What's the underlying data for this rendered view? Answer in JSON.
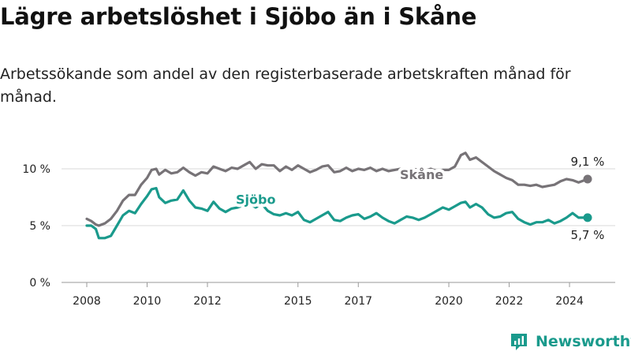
{
  "title": "Lägre arbetslöshet i Sjöbo än i Skåne",
  "subtitle": "Arbetssökande som andel av den registerbaserade arbetskraften månad för månad.",
  "brand": {
    "name": "Newsworthy",
    "color": "#1a9a8c"
  },
  "chart_data": {
    "type": "line",
    "x_range": [
      2008.0,
      2024.6
    ],
    "ylim": [
      0,
      12
    ],
    "y_ticks": [
      0,
      5,
      10
    ],
    "y_tick_labels": [
      "0 %",
      "5 %",
      "10 %"
    ],
    "x_ticks": [
      2008,
      2010,
      2012,
      2015,
      2017,
      2020,
      2022,
      2024
    ],
    "x_tick_labels": [
      "2008",
      "2010",
      "2012",
      "2015",
      "2017",
      "2020",
      "2022",
      "2024"
    ],
    "grid": true,
    "series": [
      {
        "name": "Skåne",
        "color": "#777377",
        "end_label": "9,1 %",
        "points": [
          [
            2008.0,
            5.6
          ],
          [
            2008.15,
            5.4
          ],
          [
            2008.3,
            5.1
          ],
          [
            2008.4,
            5.0
          ],
          [
            2008.6,
            5.2
          ],
          [
            2008.8,
            5.6
          ],
          [
            2009.0,
            6.3
          ],
          [
            2009.2,
            7.2
          ],
          [
            2009.4,
            7.7
          ],
          [
            2009.6,
            7.7
          ],
          [
            2009.8,
            8.6
          ],
          [
            2010.0,
            9.2
          ],
          [
            2010.15,
            9.9
          ],
          [
            2010.3,
            10.0
          ],
          [
            2010.4,
            9.5
          ],
          [
            2010.6,
            9.9
          ],
          [
            2010.8,
            9.6
          ],
          [
            2011.0,
            9.7
          ],
          [
            2011.2,
            10.1
          ],
          [
            2011.4,
            9.7
          ],
          [
            2011.6,
            9.4
          ],
          [
            2011.8,
            9.7
          ],
          [
            2012.0,
            9.6
          ],
          [
            2012.2,
            10.2
          ],
          [
            2012.4,
            10.0
          ],
          [
            2012.6,
            9.8
          ],
          [
            2012.8,
            10.1
          ],
          [
            2013.0,
            10.0
          ],
          [
            2013.2,
            10.3
          ],
          [
            2013.4,
            10.6
          ],
          [
            2013.6,
            10.0
          ],
          [
            2013.8,
            10.4
          ],
          [
            2014.0,
            10.3
          ],
          [
            2014.2,
            10.3
          ],
          [
            2014.4,
            9.8
          ],
          [
            2014.6,
            10.2
          ],
          [
            2014.8,
            9.9
          ],
          [
            2015.0,
            10.3
          ],
          [
            2015.2,
            10.0
          ],
          [
            2015.4,
            9.7
          ],
          [
            2015.6,
            9.9
          ],
          [
            2015.8,
            10.2
          ],
          [
            2016.0,
            10.3
          ],
          [
            2016.2,
            9.7
          ],
          [
            2016.4,
            9.8
          ],
          [
            2016.6,
            10.1
          ],
          [
            2016.8,
            9.8
          ],
          [
            2017.0,
            10.0
          ],
          [
            2017.2,
            9.9
          ],
          [
            2017.4,
            10.1
          ],
          [
            2017.6,
            9.8
          ],
          [
            2017.8,
            10.0
          ],
          [
            2018.0,
            9.8
          ],
          [
            2018.2,
            9.9
          ],
          [
            2018.4,
            10.0
          ],
          [
            2018.6,
            9.8
          ],
          [
            2018.8,
            10.0
          ],
          [
            2019.0,
            9.9
          ],
          [
            2019.2,
            9.8
          ],
          [
            2019.4,
            10.0
          ],
          [
            2019.6,
            9.8
          ],
          [
            2019.8,
            9.9
          ],
          [
            2020.0,
            9.9
          ],
          [
            2020.2,
            10.2
          ],
          [
            2020.4,
            11.2
          ],
          [
            2020.55,
            11.4
          ],
          [
            2020.7,
            10.8
          ],
          [
            2020.9,
            11.0
          ],
          [
            2021.1,
            10.6
          ],
          [
            2021.3,
            10.2
          ],
          [
            2021.5,
            9.8
          ],
          [
            2021.7,
            9.5
          ],
          [
            2021.9,
            9.2
          ],
          [
            2022.1,
            9.0
          ],
          [
            2022.3,
            8.6
          ],
          [
            2022.5,
            8.6
          ],
          [
            2022.7,
            8.5
          ],
          [
            2022.9,
            8.6
          ],
          [
            2023.1,
            8.4
          ],
          [
            2023.3,
            8.5
          ],
          [
            2023.5,
            8.6
          ],
          [
            2023.7,
            8.9
          ],
          [
            2023.9,
            9.1
          ],
          [
            2024.1,
            9.0
          ],
          [
            2024.3,
            8.8
          ],
          [
            2024.6,
            9.1
          ]
        ]
      },
      {
        "name": "Sjöbo",
        "color": "#1a9a8c",
        "end_label": "5,7 %",
        "points": [
          [
            2008.0,
            5.0
          ],
          [
            2008.15,
            5.0
          ],
          [
            2008.3,
            4.7
          ],
          [
            2008.4,
            3.9
          ],
          [
            2008.6,
            3.9
          ],
          [
            2008.8,
            4.1
          ],
          [
            2009.0,
            5.0
          ],
          [
            2009.2,
            5.9
          ],
          [
            2009.4,
            6.3
          ],
          [
            2009.6,
            6.1
          ],
          [
            2009.8,
            6.9
          ],
          [
            2010.0,
            7.6
          ],
          [
            2010.15,
            8.2
          ],
          [
            2010.3,
            8.3
          ],
          [
            2010.4,
            7.5
          ],
          [
            2010.6,
            7.0
          ],
          [
            2010.8,
            7.2
          ],
          [
            2011.0,
            7.3
          ],
          [
            2011.2,
            8.1
          ],
          [
            2011.4,
            7.2
          ],
          [
            2011.6,
            6.6
          ],
          [
            2011.8,
            6.5
          ],
          [
            2012.0,
            6.3
          ],
          [
            2012.2,
            7.1
          ],
          [
            2012.4,
            6.5
          ],
          [
            2012.6,
            6.2
          ],
          [
            2012.8,
            6.5
          ],
          [
            2013.0,
            6.6
          ],
          [
            2013.2,
            6.8
          ],
          [
            2013.4,
            6.9
          ],
          [
            2013.6,
            6.6
          ],
          [
            2013.8,
            6.9
          ],
          [
            2014.0,
            6.3
          ],
          [
            2014.2,
            6.0
          ],
          [
            2014.4,
            5.9
          ],
          [
            2014.6,
            6.1
          ],
          [
            2014.8,
            5.9
          ],
          [
            2015.0,
            6.2
          ],
          [
            2015.2,
            5.5
          ],
          [
            2015.4,
            5.3
          ],
          [
            2015.6,
            5.6
          ],
          [
            2015.8,
            5.9
          ],
          [
            2016.0,
            6.2
          ],
          [
            2016.2,
            5.5
          ],
          [
            2016.4,
            5.4
          ],
          [
            2016.6,
            5.7
          ],
          [
            2016.8,
            5.9
          ],
          [
            2017.0,
            6.0
          ],
          [
            2017.2,
            5.6
          ],
          [
            2017.4,
            5.8
          ],
          [
            2017.6,
            6.1
          ],
          [
            2017.8,
            5.7
          ],
          [
            2018.0,
            5.4
          ],
          [
            2018.2,
            5.2
          ],
          [
            2018.4,
            5.5
          ],
          [
            2018.6,
            5.8
          ],
          [
            2018.8,
            5.7
          ],
          [
            2019.0,
            5.5
          ],
          [
            2019.2,
            5.7
          ],
          [
            2019.4,
            6.0
          ],
          [
            2019.6,
            6.3
          ],
          [
            2019.8,
            6.6
          ],
          [
            2020.0,
            6.4
          ],
          [
            2020.2,
            6.7
          ],
          [
            2020.4,
            7.0
          ],
          [
            2020.55,
            7.1
          ],
          [
            2020.7,
            6.6
          ],
          [
            2020.9,
            6.9
          ],
          [
            2021.1,
            6.6
          ],
          [
            2021.3,
            6.0
          ],
          [
            2021.5,
            5.7
          ],
          [
            2021.7,
            5.8
          ],
          [
            2021.9,
            6.1
          ],
          [
            2022.1,
            6.2
          ],
          [
            2022.3,
            5.6
          ],
          [
            2022.5,
            5.3
          ],
          [
            2022.7,
            5.1
          ],
          [
            2022.9,
            5.3
          ],
          [
            2023.1,
            5.3
          ],
          [
            2023.3,
            5.5
          ],
          [
            2023.5,
            5.2
          ],
          [
            2023.7,
            5.4
          ],
          [
            2023.9,
            5.7
          ],
          [
            2024.1,
            6.1
          ],
          [
            2024.3,
            5.7
          ],
          [
            2024.6,
            5.7
          ]
        ]
      }
    ]
  }
}
